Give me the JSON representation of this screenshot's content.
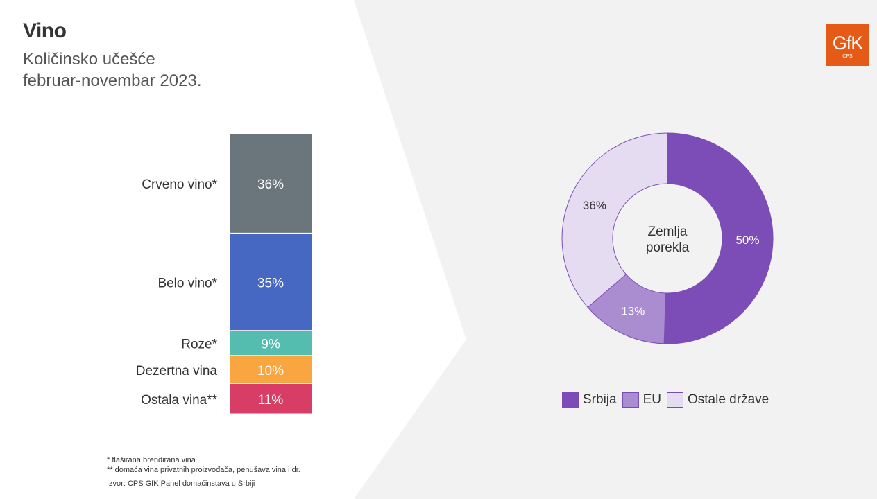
{
  "header": {
    "title": "Vino",
    "subtitle_line1": "Količinsko učešće",
    "subtitle_line2": "februar-novembar 2023."
  },
  "logo": {
    "text": "GfK",
    "sub": "CPS"
  },
  "chart_data": [
    {
      "type": "bar",
      "stacked": true,
      "categories": [
        "Crveno vino*",
        "Belo vino*",
        "Roze*",
        "Dezertna vina",
        "Ostala vina**"
      ],
      "values": [
        36,
        35,
        9,
        10,
        11
      ],
      "value_labels": [
        "36%",
        "35%",
        "9%",
        "10%",
        "11%"
      ],
      "colors": [
        "#6a757c",
        "#4667c2",
        "#55bdb0",
        "#f9a640",
        "#d83d66"
      ],
      "unit": "%"
    },
    {
      "type": "pie",
      "donut": true,
      "center_label": [
        "Zemlja",
        "porekla"
      ],
      "categories": [
        "Srbija",
        "EU",
        "Ostale države"
      ],
      "values": [
        50,
        13,
        36
      ],
      "value_labels": [
        "50%",
        "13%",
        "36%"
      ],
      "colors": [
        "#7c4db6",
        "#a98dd0",
        "#e6dcf1"
      ],
      "legend": "bottom"
    }
  ],
  "footnotes": {
    "note1": "* flaširana brendirana vina",
    "note2": "** domaća vina privatnih proizvođača, penušava vina i dr.",
    "source": "Izvor: CPS GfK Panel domaćinstava u Srbiji"
  }
}
